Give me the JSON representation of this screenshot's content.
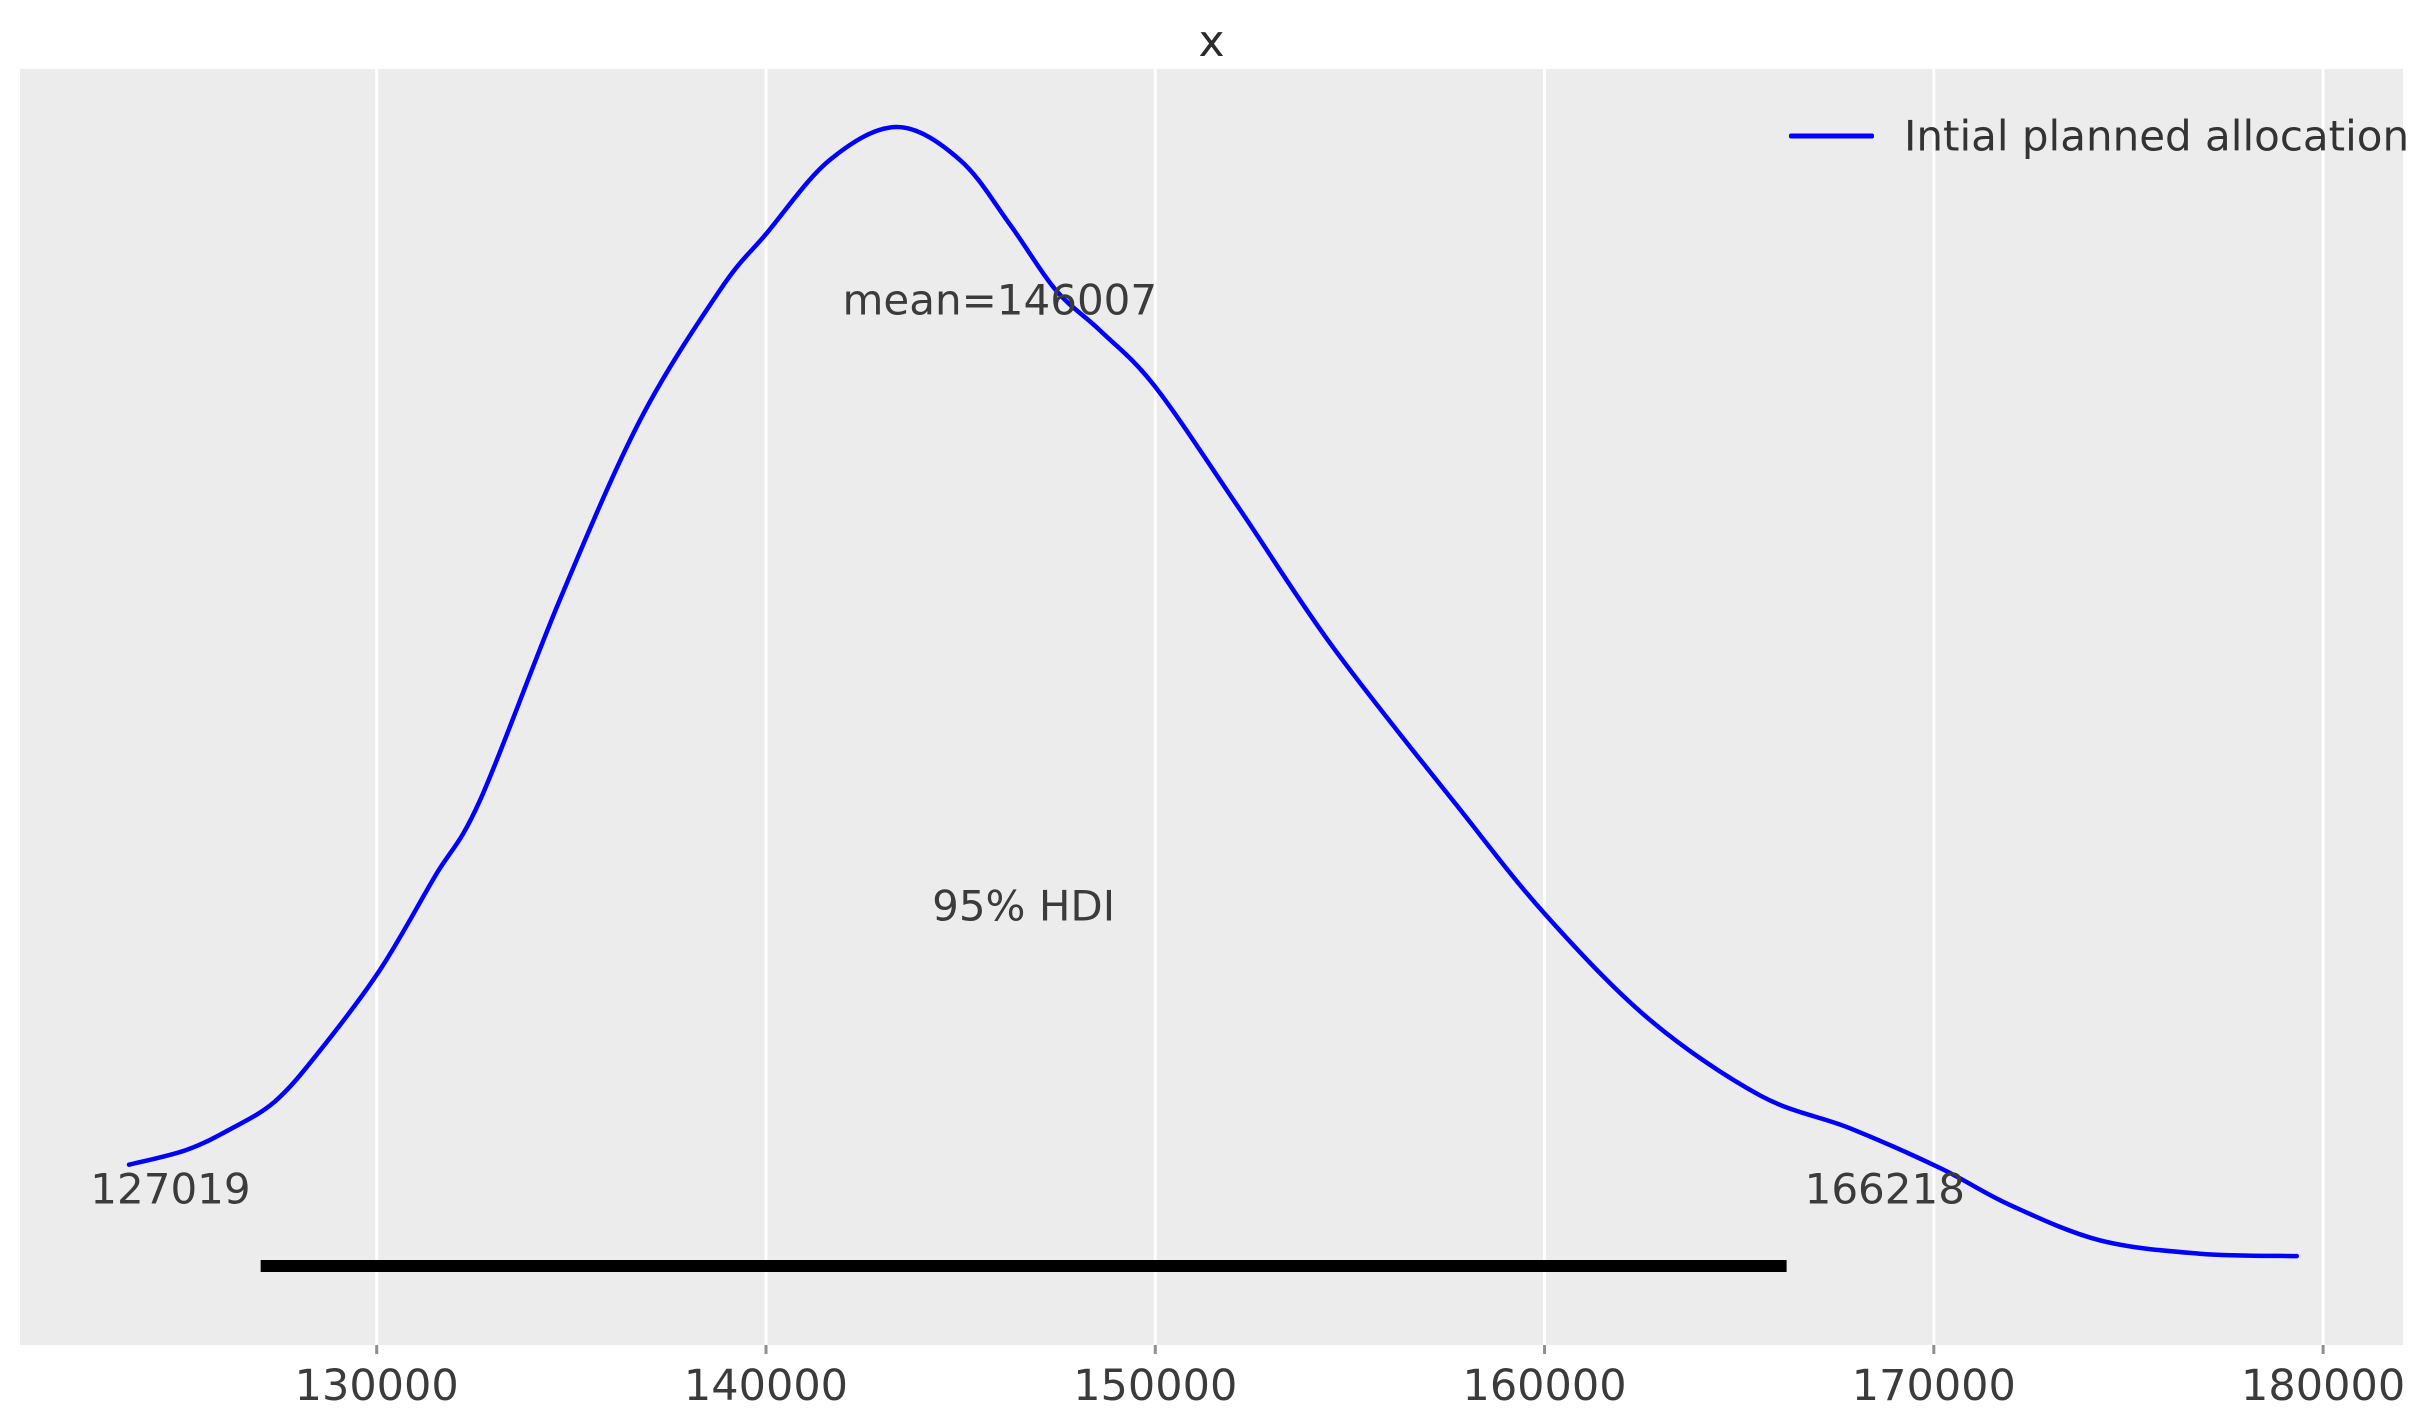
{
  "title": "x",
  "legend": {
    "label": "Intial planned allocation"
  },
  "annotations": {
    "mean_label": "mean=146007",
    "hdi_label": "95% HDI",
    "hdi_lower_label": "127019",
    "hdi_upper_label": "166218"
  },
  "chart_data": {
    "type": "line",
    "subtype": "kde-density-posterior",
    "title": "x",
    "xlabel": "",
    "ylabel": "",
    "xlim": [
      120837,
      182052
    ],
    "x_ticks": [
      130000,
      140000,
      150000,
      160000,
      170000,
      180000
    ],
    "x_tick_labels": [
      "130000",
      "140000",
      "150000",
      "160000",
      "170000",
      "180000"
    ],
    "grid": "vertical-white-gridlines",
    "legend_position": "upper right",
    "background_color": "#ececec",
    "gridline_color": "#ffffff",
    "tick_mark_color": "#8f8f8f",
    "text_color": "#3b3b3b",
    "mean": 146007,
    "hdi": {
      "prob": "95%",
      "lower": 127019,
      "upper": 166218,
      "bar_color": "#000000"
    },
    "series": [
      {
        "name": "Intial planned allocation",
        "color": "#0000ff",
        "x": [
          123637,
          125100,
          126229,
          127387,
          128500,
          130084,
          131500,
          132652,
          134707,
          136762,
          138817,
          140024,
          141642,
          143363,
          144981,
          146265,
          147447,
          148577,
          149990,
          152173,
          154562,
          157747,
          160033,
          162704,
          165530,
          167842,
          170179,
          171952,
          174264,
          176832,
          179324
        ],
        "density": [
          0.148,
          0.16,
          0.177,
          0.2,
          0.24,
          0.308,
          0.385,
          0.447,
          0.612,
          0.759,
          0.866,
          0.913,
          0.973,
          1.0,
          0.973,
          0.92,
          0.866,
          0.833,
          0.787,
          0.686,
          0.573,
          0.443,
          0.353,
          0.267,
          0.205,
          0.178,
          0.145,
          0.115,
          0.086,
          0.075,
          0.073
        ]
      }
    ]
  }
}
